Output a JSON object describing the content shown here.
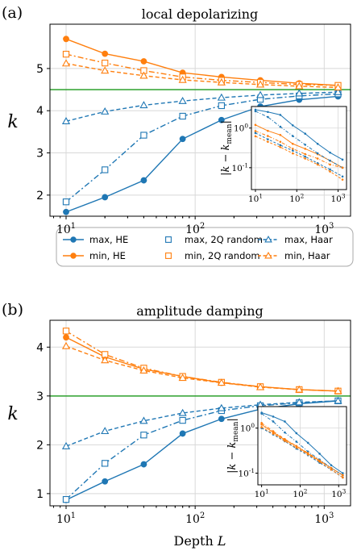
{
  "figure": {
    "legend": [
      {
        "label": "max, HE",
        "color": "#1f77b4",
        "marker": "circle-filled",
        "dash": "solid"
      },
      {
        "label": "min, HE",
        "color": "#ff7f0e",
        "marker": "circle-filled",
        "dash": "solid"
      },
      {
        "label": "max, 2Q random",
        "color": "#1f77b4",
        "marker": "square-open",
        "dash": "dashdot"
      },
      {
        "label": "min, 2Q random",
        "color": "#ff7f0e",
        "marker": "square-open",
        "dash": "dashdot"
      },
      {
        "label": "max, Haar",
        "color": "#1f77b4",
        "marker": "triangle-open",
        "dash": "dashed"
      },
      {
        "label": "min, Haar",
        "color": "#ff7f0e",
        "marker": "triangle-open",
        "dash": "dashed"
      }
    ],
    "colors": {
      "blue": "#1f77b4",
      "orange": "#ff7f0e",
      "green": "#2ca02c",
      "grid": "#d8d8d8"
    }
  },
  "chart_data": [
    {
      "panel_label": "(a)",
      "title": "local depolarizing",
      "type": "line",
      "xlabel": "",
      "ylabel": "k",
      "xscale": "log",
      "xlim": [
        7.5,
        1600
      ],
      "ylim": [
        1.5,
        6.05
      ],
      "xticks": [
        10,
        100,
        1000
      ],
      "xtick_labels": [
        "10^1",
        "10^2",
        "10^3"
      ],
      "yticks": [
        2,
        3,
        4,
        5
      ],
      "grid": true,
      "reference_line": {
        "y": 4.5,
        "color": "#2ca02c"
      },
      "x": [
        10,
        20,
        40,
        80,
        160,
        320,
        640,
        1280
      ],
      "series": [
        {
          "name": "max, HE",
          "values": [
            1.6,
            1.95,
            2.35,
            3.33,
            3.78,
            4.1,
            4.26,
            4.34
          ]
        },
        {
          "name": "min, HE",
          "values": [
            5.7,
            5.35,
            5.17,
            4.9,
            4.8,
            4.72,
            4.65,
            4.6
          ]
        },
        {
          "name": "max, 2Q random",
          "values": [
            1.84,
            2.6,
            3.42,
            3.87,
            4.12,
            4.27,
            4.35,
            4.4
          ]
        },
        {
          "name": "min, 2Q random",
          "values": [
            5.34,
            5.13,
            4.95,
            4.8,
            4.72,
            4.67,
            4.62,
            4.6
          ]
        },
        {
          "name": "max, Haar",
          "values": [
            3.75,
            3.98,
            4.13,
            4.23,
            4.31,
            4.37,
            4.41,
            4.44
          ]
        },
        {
          "name": "min, Haar",
          "values": [
            5.12,
            4.95,
            4.83,
            4.73,
            4.67,
            4.62,
            4.58,
            4.55
          ]
        }
      ],
      "inset": {
        "ylabel": "|k − k_mean|",
        "xscale": "log",
        "yscale": "log",
        "xlim": [
          8,
          1600
        ],
        "ylim": [
          0.028,
          3.5
        ],
        "xticks": [
          10,
          100,
          1000
        ],
        "xtick_labels": [
          "10^1",
          "10^2",
          "10^3"
        ],
        "yticks": [
          0.1,
          1
        ],
        "ytick_labels": [
          "10^-1",
          "10^0"
        ],
        "x": [
          10,
          20,
          40,
          80,
          160,
          320,
          640,
          1280
        ],
        "series": [
          {
            "name": "max, HE",
            "values": [
              2.9,
              2.55,
              2.15,
              1.17,
              0.72,
              0.4,
              0.24,
              0.16
            ]
          },
          {
            "name": "min, HE",
            "values": [
              1.2,
              0.85,
              0.67,
              0.4,
              0.3,
              0.22,
              0.15,
              0.1
            ]
          },
          {
            "name": "max, 2Q random",
            "values": [
              2.66,
              1.9,
              1.08,
              0.63,
              0.38,
              0.23,
              0.15,
              0.1
            ]
          },
          {
            "name": "min, 2Q random",
            "values": [
              0.84,
              0.63,
              0.45,
              0.3,
              0.22,
              0.17,
              0.12,
              0.1
            ]
          },
          {
            "name": "max, Haar",
            "values": [
              0.75,
              0.52,
              0.37,
              0.27,
              0.19,
              0.13,
              0.09,
              0.06
            ]
          },
          {
            "name": "min, Haar",
            "values": [
              0.62,
              0.45,
              0.33,
              0.23,
              0.17,
              0.12,
              0.08,
              0.05
            ]
          }
        ]
      }
    },
    {
      "panel_label": "(b)",
      "title": "amplitude damping",
      "type": "line",
      "xlabel": "Depth L",
      "ylabel": "k",
      "xscale": "log",
      "xlim": [
        7.5,
        1600
      ],
      "ylim": [
        0.75,
        4.55
      ],
      "xticks": [
        10,
        100,
        1000
      ],
      "xtick_labels": [
        "10^1",
        "10^2",
        "10^3"
      ],
      "yticks": [
        1,
        2,
        3,
        4
      ],
      "grid": true,
      "reference_line": {
        "y": 3.0,
        "color": "#2ca02c"
      },
      "x": [
        10,
        20,
        40,
        80,
        160,
        320,
        640,
        1280
      ],
      "series": [
        {
          "name": "max, HE",
          "values": [
            0.87,
            1.25,
            1.6,
            2.23,
            2.53,
            2.73,
            2.84,
            2.9
          ]
        },
        {
          "name": "min, HE",
          "values": [
            4.2,
            3.8,
            3.55,
            3.4,
            3.27,
            3.19,
            3.13,
            3.1
          ]
        },
        {
          "name": "max, 2Q random",
          "values": [
            0.88,
            1.62,
            2.2,
            2.5,
            2.7,
            2.8,
            2.86,
            2.9
          ]
        },
        {
          "name": "min, 2Q random",
          "values": [
            4.33,
            3.85,
            3.57,
            3.4,
            3.28,
            3.19,
            3.13,
            3.1
          ]
        },
        {
          "name": "max, Haar",
          "values": [
            1.97,
            2.28,
            2.49,
            2.65,
            2.75,
            2.82,
            2.87,
            2.9
          ]
        },
        {
          "name": "min, Haar",
          "values": [
            4.02,
            3.73,
            3.52,
            3.37,
            3.27,
            3.18,
            3.13,
            3.1
          ]
        }
      ],
      "inset": {
        "ylabel": "|k − k_mean|",
        "xscale": "log",
        "yscale": "log",
        "xlim": [
          8,
          1600
        ],
        "ylim": [
          0.055,
          3.0
        ],
        "xticks": [
          10,
          100,
          1000
        ],
        "xtick_labels": [
          "10^1",
          "10^2",
          "10^3"
        ],
        "yticks": [
          0.1,
          1
        ],
        "ytick_labels": [
          "10^-1",
          "10^0"
        ],
        "x": [
          10,
          20,
          40,
          80,
          160,
          320,
          640,
          1280
        ],
        "series": [
          {
            "name": "max, HE",
            "values": [
              2.2,
              1.8,
              1.4,
              0.77,
              0.47,
              0.27,
              0.15,
              0.1
            ]
          },
          {
            "name": "min, HE",
            "values": [
              1.2,
              0.8,
              0.55,
              0.4,
              0.27,
              0.19,
              0.13,
              0.09
            ]
          },
          {
            "name": "max, 2Q random",
            "values": [
              2.1,
              1.4,
              0.8,
              0.5,
              0.3,
              0.2,
              0.13,
              0.09
            ]
          },
          {
            "name": "min, 2Q random",
            "values": [
              1.3,
              0.85,
              0.57,
              0.4,
              0.28,
              0.19,
              0.13,
              0.09
            ]
          },
          {
            "name": "max, Haar",
            "values": [
              1.0,
              0.72,
              0.51,
              0.35,
              0.25,
              0.17,
              0.12,
              0.08
            ]
          },
          {
            "name": "min, Haar",
            "values": [
              1.05,
              0.75,
              0.52,
              0.37,
              0.26,
              0.18,
              0.12,
              0.08
            ]
          }
        ]
      }
    }
  ]
}
